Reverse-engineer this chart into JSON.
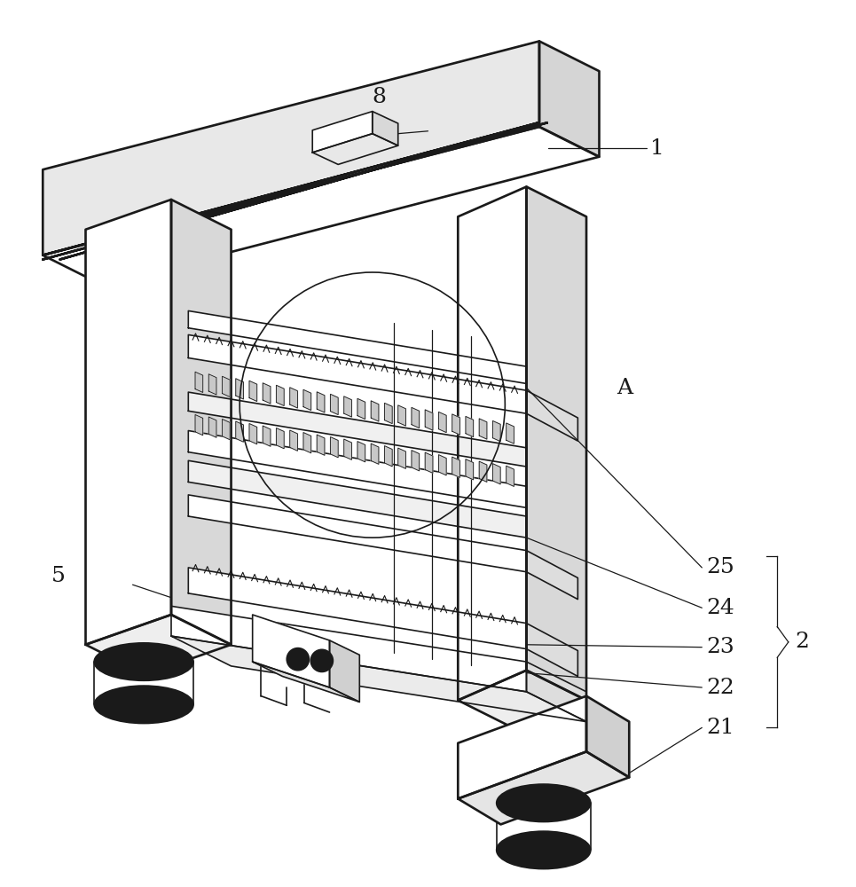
{
  "bg_color": "#ffffff",
  "line_color": "#1a1a1a",
  "line_width": 1.2,
  "label_color": "#1a1a1a",
  "label_fontsize": 18
}
